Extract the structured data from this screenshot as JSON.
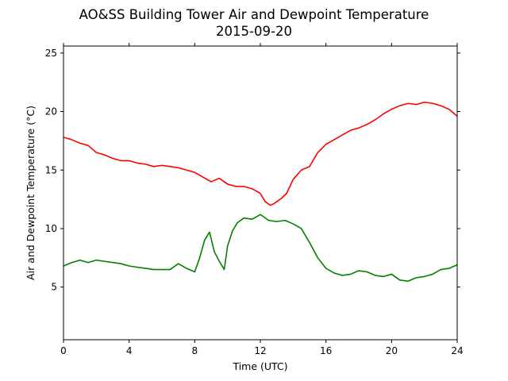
{
  "chart_data": {
    "type": "line",
    "title": "AO&SS Building Tower Air and Dewpoint Temperature",
    "subtitle": "2015-09-20",
    "xlabel": "Time (UTC)",
    "ylabel": "Air and Dewpoint Temperature (°C)",
    "xlim": [
      0,
      24
    ],
    "ylim": [
      0.5,
      25.6
    ],
    "xticks": [
      0,
      4,
      8,
      12,
      16,
      20,
      24
    ],
    "yticks": [
      5,
      10,
      15,
      20,
      25
    ],
    "grid": false,
    "series": [
      {
        "color": "#ff0000",
        "x": [
          0,
          0.5,
          1,
          1.5,
          2,
          2.5,
          3,
          3.5,
          4,
          4.5,
          5,
          5.5,
          6,
          6.5,
          7,
          7.5,
          8,
          8.5,
          9,
          9.5,
          10,
          10.5,
          11,
          11.5,
          12,
          12.3,
          12.6,
          12.8,
          13,
          13.3,
          13.6,
          14,
          14.5,
          15,
          15.5,
          16,
          16.5,
          17,
          17.5,
          18,
          18.5,
          19,
          19.5,
          20,
          20.5,
          21,
          21.5,
          22,
          22.5,
          23,
          23.5,
          24
        ],
        "y": [
          17.8,
          17.6,
          17.3,
          17.1,
          16.5,
          16.3,
          16.0,
          15.8,
          15.8,
          15.6,
          15.5,
          15.3,
          15.4,
          15.3,
          15.2,
          15.0,
          14.8,
          14.4,
          14.0,
          14.3,
          13.8,
          13.6,
          13.6,
          13.4,
          13.0,
          12.3,
          12.0,
          12.1,
          12.3,
          12.6,
          13.0,
          14.2,
          15.0,
          15.3,
          16.5,
          17.2,
          17.6,
          18.0,
          18.4,
          18.6,
          18.9,
          19.3,
          19.8,
          20.2,
          20.5,
          20.7,
          20.6,
          20.8,
          20.7,
          20.5,
          20.2,
          19.6
        ]
      },
      {
        "color": "#008000",
        "x": [
          0,
          0.5,
          1,
          1.5,
          2,
          2.5,
          3,
          3.5,
          4,
          4.5,
          5,
          5.5,
          6,
          6.5,
          7,
          7.5,
          8,
          8.3,
          8.6,
          8.9,
          9.2,
          9.5,
          9.8,
          10,
          10.3,
          10.6,
          11,
          11.5,
          12,
          12.5,
          13,
          13.5,
          14,
          14.5,
          15,
          15.5,
          16,
          16.5,
          17,
          17.5,
          18,
          18.5,
          19,
          19.5,
          20,
          20.5,
          21,
          21.5,
          22,
          22.5,
          23,
          23.5,
          24
        ],
        "y": [
          6.8,
          7.1,
          7.3,
          7.1,
          7.3,
          7.2,
          7.1,
          7.0,
          6.8,
          6.7,
          6.6,
          6.5,
          6.5,
          6.5,
          7.0,
          6.6,
          6.3,
          7.5,
          9.0,
          9.7,
          8.0,
          7.2,
          6.5,
          8.5,
          9.8,
          10.5,
          10.9,
          10.8,
          11.2,
          10.7,
          10.6,
          10.7,
          10.4,
          10.0,
          8.8,
          7.5,
          6.6,
          6.2,
          6.0,
          6.1,
          6.4,
          6.3,
          6.0,
          5.9,
          6.1,
          5.6,
          5.5,
          5.8,
          5.9,
          6.1,
          6.5,
          6.6,
          6.9
        ]
      }
    ]
  }
}
